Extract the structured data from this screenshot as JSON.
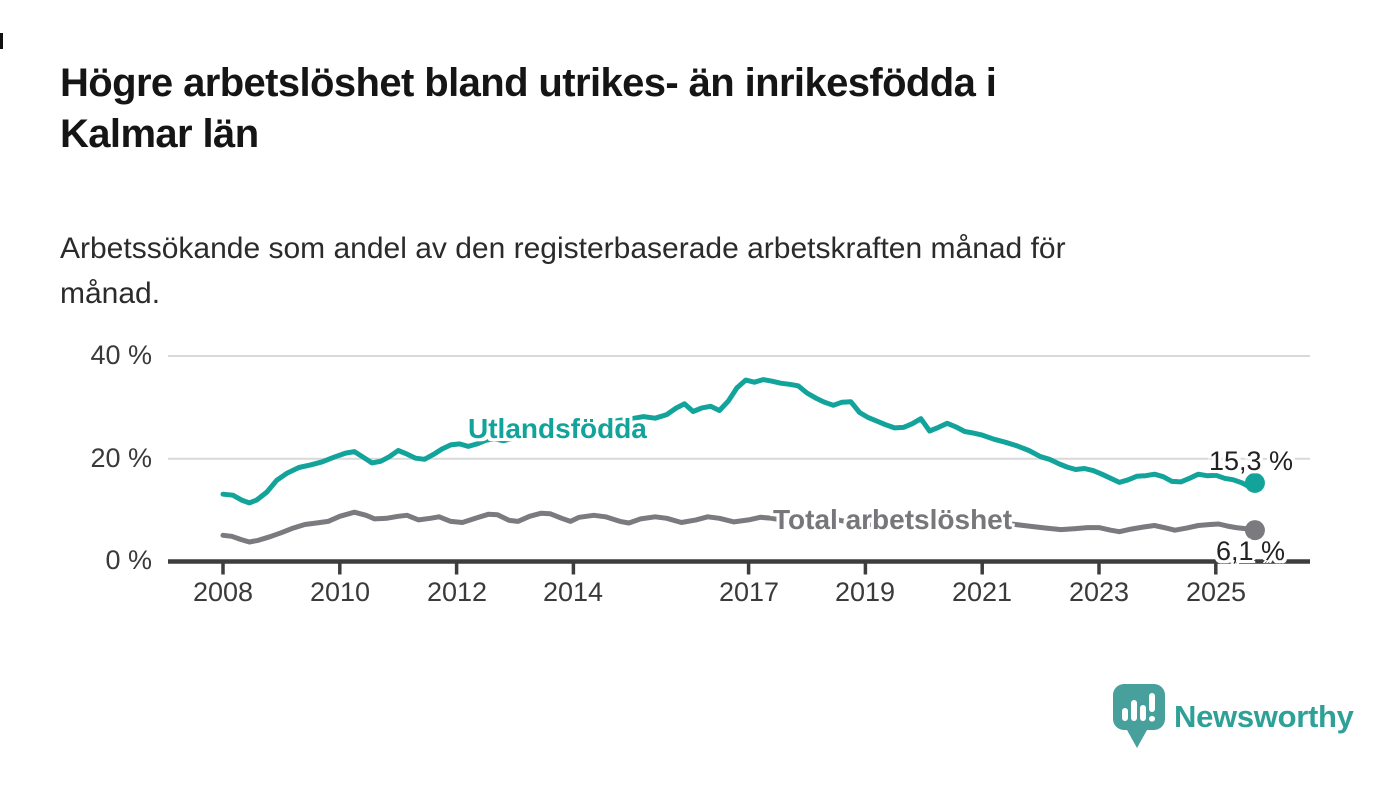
{
  "header": {
    "title": "Högre arbetslöshet bland utrikes- än inrikesfödda i\nKalmar län",
    "subtitle": "Arbetssökande som andel av den registerbaserade arbetskraften månad för\nmånad."
  },
  "chart_data": {
    "type": "line",
    "title": "Högre arbetslöshet bland utrikes- än inrikesfödda i Kalmar län",
    "subtitle": "Arbetssökande som andel av den registerbaserade arbetskraften månad för månad.",
    "grid": "horizontal-only",
    "x_axis": {
      "ticks": [
        2008,
        2010,
        2012,
        2014,
        2017,
        2019,
        2021,
        2023,
        2025
      ],
      "labels": [
        "2008",
        "2010",
        "2012",
        "2014",
        "2017",
        "2019",
        "2021",
        "2023",
        "2025"
      ],
      "range_years": [
        2007.9,
        2025.9
      ]
    },
    "y_axis": {
      "labels_top_to_bottom": [
        "40 %",
        "20 %",
        "0 %"
      ],
      "tick_values": [
        40,
        20,
        0
      ],
      "ylim": [
        0,
        40
      ],
      "unit": "%"
    },
    "colors": {
      "utlandsfodda": "#12a39a",
      "total": "#7a7a7f",
      "grid": "#d9d9d9",
      "axis": "#3d3d3d"
    },
    "series": [
      {
        "name": "Utlandsfödda",
        "color": "#12a39a",
        "end_label": "15,3 %",
        "end_value": 15.3,
        "points": [
          [
            2008.0,
            13.1
          ],
          [
            2008.17,
            12.9
          ],
          [
            2008.33,
            11.9
          ],
          [
            2008.45,
            11.4
          ],
          [
            2008.58,
            12.0
          ],
          [
            2008.75,
            13.5
          ],
          [
            2008.92,
            15.8
          ],
          [
            2009.1,
            17.2
          ],
          [
            2009.3,
            18.3
          ],
          [
            2009.5,
            18.8
          ],
          [
            2009.7,
            19.4
          ],
          [
            2009.9,
            20.3
          ],
          [
            2010.1,
            21.1
          ],
          [
            2010.25,
            21.4
          ],
          [
            2010.4,
            20.3
          ],
          [
            2010.55,
            19.2
          ],
          [
            2010.7,
            19.5
          ],
          [
            2010.85,
            20.4
          ],
          [
            2011.0,
            21.6
          ],
          [
            2011.15,
            20.9
          ],
          [
            2011.3,
            20.1
          ],
          [
            2011.45,
            19.9
          ],
          [
            2011.6,
            20.8
          ],
          [
            2011.75,
            21.9
          ],
          [
            2011.9,
            22.7
          ],
          [
            2012.05,
            22.9
          ],
          [
            2012.2,
            22.4
          ],
          [
            2012.35,
            22.9
          ],
          [
            2012.5,
            23.6
          ],
          [
            2012.65,
            23.9
          ],
          [
            2012.8,
            23.5
          ],
          [
            2013.0,
            24.1
          ],
          [
            2013.2,
            24.7
          ],
          [
            2013.4,
            24.4
          ],
          [
            2013.6,
            25.1
          ],
          [
            2013.8,
            25.6
          ],
          [
            2014.0,
            26.1
          ],
          [
            2014.2,
            26.7
          ],
          [
            2014.4,
            26.3
          ],
          [
            2014.6,
            27.1
          ],
          [
            2014.8,
            27.5
          ],
          [
            2015.0,
            27.8
          ],
          [
            2015.2,
            28.2
          ],
          [
            2015.4,
            27.9
          ],
          [
            2015.6,
            28.6
          ],
          [
            2015.75,
            29.8
          ],
          [
            2015.9,
            30.7
          ],
          [
            2016.05,
            29.2
          ],
          [
            2016.2,
            29.9
          ],
          [
            2016.35,
            30.2
          ],
          [
            2016.5,
            29.4
          ],
          [
            2016.65,
            31.2
          ],
          [
            2016.8,
            33.8
          ],
          [
            2016.95,
            35.3
          ],
          [
            2017.1,
            34.9
          ],
          [
            2017.25,
            35.4
          ],
          [
            2017.4,
            35.1
          ],
          [
            2017.55,
            34.7
          ],
          [
            2017.7,
            34.5
          ],
          [
            2017.85,
            34.2
          ],
          [
            2018.0,
            32.8
          ],
          [
            2018.15,
            31.8
          ],
          [
            2018.3,
            31.0
          ],
          [
            2018.45,
            30.4
          ],
          [
            2018.6,
            31.0
          ],
          [
            2018.75,
            31.1
          ],
          [
            2018.9,
            29.0
          ],
          [
            2019.05,
            28.0
          ],
          [
            2019.2,
            27.3
          ],
          [
            2019.35,
            26.6
          ],
          [
            2019.5,
            26.0
          ],
          [
            2019.65,
            26.1
          ],
          [
            2019.8,
            26.8
          ],
          [
            2019.95,
            27.8
          ],
          [
            2020.1,
            25.4
          ],
          [
            2020.25,
            26.1
          ],
          [
            2020.4,
            26.9
          ],
          [
            2020.55,
            26.2
          ],
          [
            2020.7,
            25.3
          ],
          [
            2020.85,
            25.0
          ],
          [
            2021.0,
            24.6
          ],
          [
            2021.2,
            23.8
          ],
          [
            2021.4,
            23.2
          ],
          [
            2021.6,
            22.5
          ],
          [
            2021.8,
            21.6
          ],
          [
            2022.0,
            20.4
          ],
          [
            2022.15,
            19.9
          ],
          [
            2022.3,
            19.1
          ],
          [
            2022.45,
            18.4
          ],
          [
            2022.6,
            17.9
          ],
          [
            2022.75,
            18.1
          ],
          [
            2022.9,
            17.7
          ],
          [
            2023.05,
            17.0
          ],
          [
            2023.2,
            16.2
          ],
          [
            2023.35,
            15.4
          ],
          [
            2023.5,
            15.9
          ],
          [
            2023.65,
            16.6
          ],
          [
            2023.8,
            16.7
          ],
          [
            2023.95,
            17.0
          ],
          [
            2024.1,
            16.5
          ],
          [
            2024.25,
            15.6
          ],
          [
            2024.4,
            15.5
          ],
          [
            2024.55,
            16.2
          ],
          [
            2024.7,
            17.0
          ],
          [
            2024.85,
            16.7
          ],
          [
            2025.0,
            16.8
          ],
          [
            2025.15,
            16.2
          ],
          [
            2025.3,
            15.9
          ],
          [
            2025.45,
            15.3
          ],
          [
            2025.55,
            14.7
          ],
          [
            2025.67,
            15.3
          ]
        ]
      },
      {
        "name": "Total arbetslöshet",
        "color": "#7a7a7f",
        "end_label": "6,1 %",
        "end_value": 6.1,
        "points": [
          [
            2008.0,
            5.1
          ],
          [
            2008.15,
            4.9
          ],
          [
            2008.3,
            4.3
          ],
          [
            2008.45,
            3.8
          ],
          [
            2008.6,
            4.1
          ],
          [
            2008.8,
            4.8
          ],
          [
            2009.0,
            5.6
          ],
          [
            2009.2,
            6.5
          ],
          [
            2009.4,
            7.2
          ],
          [
            2009.6,
            7.5
          ],
          [
            2009.8,
            7.8
          ],
          [
            2010.0,
            8.8
          ],
          [
            2010.25,
            9.6
          ],
          [
            2010.45,
            9.0
          ],
          [
            2010.6,
            8.3
          ],
          [
            2010.8,
            8.4
          ],
          [
            2011.0,
            8.8
          ],
          [
            2011.15,
            9.0
          ],
          [
            2011.35,
            8.1
          ],
          [
            2011.55,
            8.4
          ],
          [
            2011.7,
            8.7
          ],
          [
            2011.9,
            7.8
          ],
          [
            2012.1,
            7.6
          ],
          [
            2012.35,
            8.5
          ],
          [
            2012.55,
            9.2
          ],
          [
            2012.7,
            9.1
          ],
          [
            2012.9,
            8.0
          ],
          [
            2013.05,
            7.8
          ],
          [
            2013.25,
            8.8
          ],
          [
            2013.45,
            9.4
          ],
          [
            2013.6,
            9.3
          ],
          [
            2013.8,
            8.4
          ],
          [
            2013.95,
            7.8
          ],
          [
            2014.1,
            8.6
          ],
          [
            2014.35,
            9.0
          ],
          [
            2014.55,
            8.7
          ],
          [
            2014.8,
            7.8
          ],
          [
            2014.95,
            7.5
          ],
          [
            2015.15,
            8.3
          ],
          [
            2015.4,
            8.7
          ],
          [
            2015.6,
            8.4
          ],
          [
            2015.85,
            7.6
          ],
          [
            2016.1,
            8.1
          ],
          [
            2016.3,
            8.7
          ],
          [
            2016.5,
            8.4
          ],
          [
            2016.75,
            7.7
          ],
          [
            2017.0,
            8.1
          ],
          [
            2017.2,
            8.6
          ],
          [
            2017.4,
            8.4
          ],
          [
            2017.6,
            8.0
          ],
          [
            2017.9,
            7.4
          ],
          [
            2018.2,
            7.8
          ],
          [
            2018.5,
            8.2
          ],
          [
            2018.8,
            7.4
          ],
          [
            2019.1,
            7.2
          ],
          [
            2019.4,
            7.6
          ],
          [
            2019.7,
            7.1
          ],
          [
            2020.0,
            7.3
          ],
          [
            2020.3,
            8.4
          ],
          [
            2020.6,
            8.8
          ],
          [
            2020.9,
            8.3
          ],
          [
            2021.2,
            7.9
          ],
          [
            2021.5,
            7.3
          ],
          [
            2021.8,
            6.9
          ],
          [
            2022.1,
            6.5
          ],
          [
            2022.35,
            6.2
          ],
          [
            2022.6,
            6.4
          ],
          [
            2022.8,
            6.6
          ],
          [
            2023.0,
            6.6
          ],
          [
            2023.2,
            6.1
          ],
          [
            2023.35,
            5.8
          ],
          [
            2023.55,
            6.3
          ],
          [
            2023.75,
            6.7
          ],
          [
            2023.95,
            7.0
          ],
          [
            2024.15,
            6.5
          ],
          [
            2024.3,
            6.1
          ],
          [
            2024.5,
            6.5
          ],
          [
            2024.7,
            7.0
          ],
          [
            2024.9,
            7.2
          ],
          [
            2025.05,
            7.3
          ],
          [
            2025.2,
            6.9
          ],
          [
            2025.35,
            6.6
          ],
          [
            2025.5,
            6.4
          ],
          [
            2025.67,
            6.1
          ]
        ]
      }
    ],
    "annotations": {
      "utlandsfodda_label": "Utlandsfödda",
      "total_label": "Total arbetslöshet",
      "utlandsfodda_end": "15,3 %",
      "total_end": "6,1 %"
    },
    "legend_position": "inline-labels-on-lines"
  },
  "footer": {
    "brand": "Newsworthy"
  }
}
